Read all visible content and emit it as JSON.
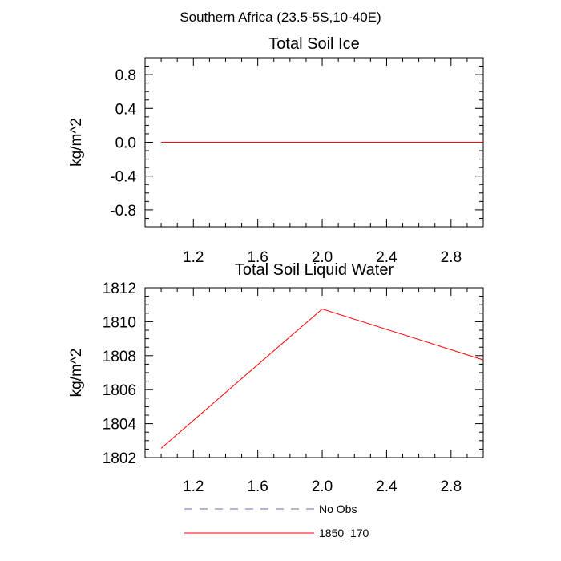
{
  "figure": {
    "title": "Southern Africa (23.5-5S,10-40E)"
  },
  "colors": {
    "series_line": "#ff0000",
    "no_obs_line": "#6a6ab3",
    "axes": "#000000"
  },
  "chart_data": [
    {
      "type": "line",
      "title": "Total Soil Ice",
      "xlabel": "",
      "ylabel": "kg/m^2",
      "xlim": [
        0.9,
        3.0
      ],
      "ylim": [
        -1.0,
        1.0
      ],
      "x_ticks": [
        "1.2",
        "1.6",
        "2.0",
        "2.4",
        "2.8"
      ],
      "y_ticks": [
        "0.8",
        "0.4",
        "0.0",
        "-0.4",
        "-0.8"
      ],
      "grid": false,
      "series": [
        {
          "name": "1850_170",
          "x": [
            1,
            2,
            3
          ],
          "y": [
            0.0,
            0.0,
            0.0
          ]
        }
      ]
    },
    {
      "type": "line",
      "title": "Total Soil Liquid Water",
      "xlabel": "",
      "ylabel": "kg/m^2",
      "xlim": [
        0.9,
        3.0
      ],
      "ylim": [
        1802,
        1812
      ],
      "x_ticks": [
        "1.2",
        "1.6",
        "2.0",
        "2.4",
        "2.8"
      ],
      "y_ticks": [
        "1812",
        "1810",
        "1808",
        "1806",
        "1804",
        "1802"
      ],
      "grid": false,
      "series": [
        {
          "name": "1850_170",
          "x": [
            1,
            2,
            3
          ],
          "y": [
            1802.55,
            1810.75,
            1807.75
          ]
        }
      ]
    }
  ],
  "legend": {
    "placement": "bottom",
    "entries": [
      {
        "label": "No Obs",
        "style": "dashed"
      },
      {
        "label": "1850_170",
        "style": "solid"
      }
    ]
  }
}
